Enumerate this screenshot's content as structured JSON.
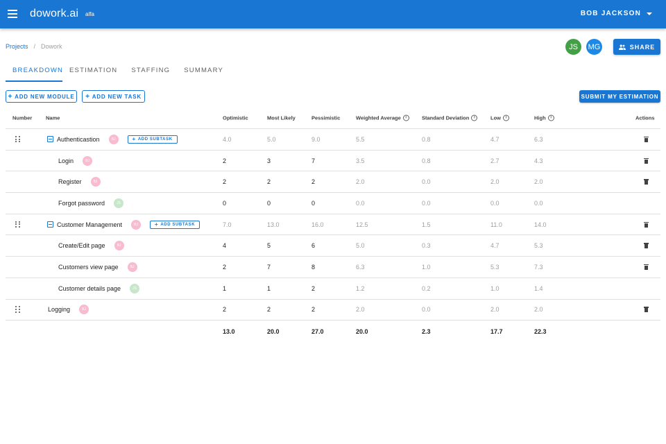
{
  "app": {
    "logo": "dowork.ai",
    "logo_tag": "alfa",
    "user_name": "BOB JACKSON",
    "menu_icon": "hamburger-menu-icon",
    "colors": {
      "primary": "#1976d2",
      "avatar_green": "#43a047",
      "avatar_blue": "#1e88e5",
      "avatar_pink": "#f8bbd0",
      "avatar_lightgreen": "#c8e6c9"
    }
  },
  "breadcrumb": {
    "link": "Projects",
    "separator": "/",
    "current": "Dowork"
  },
  "collaborators": [
    {
      "initials": "JS"
    },
    {
      "initials": "MG"
    }
  ],
  "share_label": "SHARE",
  "tabs": [
    {
      "label": "BREAKDOWN",
      "active": true
    },
    {
      "label": "ESTIMATION",
      "active": false
    },
    {
      "label": "STAFFING",
      "active": false
    },
    {
      "label": "SUMMARY",
      "active": false
    }
  ],
  "toolbar": {
    "add_module": "ADD NEW MODULE",
    "add_task": "ADD NEW TASK",
    "submit": "SUBMIT MY ESTIMATION",
    "add_subtask": "ADD SUBTASK"
  },
  "table": {
    "headers": {
      "number": "Number",
      "name": "Name",
      "optimistic": "Optimistic",
      "most_likely": "Most Likely",
      "pessimistic": "Pessimistic",
      "weighted_average": "Weighted Average",
      "standard_deviation": "Standard Deviation",
      "low": "Low",
      "high": "High",
      "actions": "Actions"
    },
    "rows": [
      {
        "name": "Authenticastion",
        "type": "module",
        "avatar": "BJ",
        "optimistic": "4.0",
        "most_likely": "5.0",
        "pessimistic": "9.0",
        "weighted_average": "5.5",
        "standard_deviation": "0.8",
        "low": "4.7",
        "high": "6.3"
      },
      {
        "name": "Login",
        "type": "task",
        "avatar": "BJ",
        "optimistic": "2",
        "most_likely": "3",
        "pessimistic": "7",
        "weighted_average": "3.5",
        "standard_deviation": "0.8",
        "low": "2.7",
        "high": "4.3"
      },
      {
        "name": "Register",
        "type": "task",
        "avatar": "BJ",
        "optimistic": "2",
        "most_likely": "2",
        "pessimistic": "2",
        "weighted_average": "2.0",
        "standard_deviation": "0.0",
        "low": "2.0",
        "high": "2.0"
      },
      {
        "name": "Forgot password",
        "type": "task",
        "avatar": "JS",
        "optimistic": "0",
        "most_likely": "0",
        "pessimistic": "0",
        "weighted_average": "0.0",
        "standard_deviation": "0.0",
        "low": "0.0",
        "high": "0.0"
      },
      {
        "name": "Customer Management",
        "type": "module",
        "avatar": "BJ",
        "optimistic": "7.0",
        "most_likely": "13.0",
        "pessimistic": "16.0",
        "weighted_average": "12.5",
        "standard_deviation": "1.5",
        "low": "11.0",
        "high": "14.0"
      },
      {
        "name": "Create/Edit page",
        "type": "task",
        "avatar": "BJ",
        "optimistic": "4",
        "most_likely": "5",
        "pessimistic": "6",
        "weighted_average": "5.0",
        "standard_deviation": "0.3",
        "low": "4.7",
        "high": "5.3"
      },
      {
        "name": "Customers view page",
        "type": "task",
        "avatar": "BJ",
        "optimistic": "2",
        "most_likely": "7",
        "pessimistic": "8",
        "weighted_average": "6.3",
        "standard_deviation": "1.0",
        "low": "5.3",
        "high": "7.3"
      },
      {
        "name": "Customer details page",
        "type": "task",
        "avatar": "JS",
        "optimistic": "1",
        "most_likely": "1",
        "pessimistic": "2",
        "weighted_average": "1.2",
        "standard_deviation": "0.2",
        "low": "1.0",
        "high": "1.4"
      },
      {
        "name": "Logging",
        "type": "standalone",
        "avatar": "BJ",
        "optimistic": "2",
        "most_likely": "2",
        "pessimistic": "2",
        "weighted_average": "2.0",
        "standard_deviation": "0.0",
        "low": "2.0",
        "high": "2.0"
      }
    ],
    "totals": {
      "optimistic": "13.0",
      "most_likely": "20.0",
      "pessimistic": "27.0",
      "weighted_average": "20.0",
      "standard_deviation": "2.3",
      "low": "17.7",
      "high": "22.3"
    }
  }
}
